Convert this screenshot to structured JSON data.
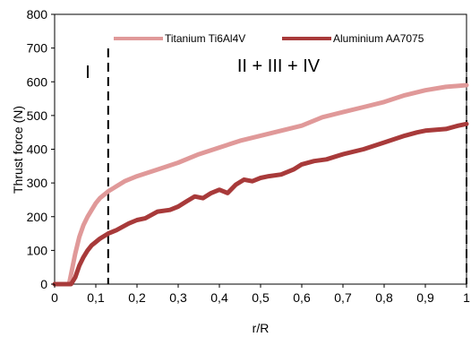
{
  "chart_data": {
    "type": "line",
    "xlabel": "r/R",
    "ylabel": "Thrust force (N)",
    "xlim": [
      0,
      1
    ],
    "ylim": [
      0,
      800
    ],
    "x_ticks": [
      "0",
      "0,1",
      "0,2",
      "0,3",
      "0,4",
      "0,5",
      "0,6",
      "0,7",
      "0,8",
      "0,9",
      "1"
    ],
    "y_ticks": [
      "0",
      "100",
      "200",
      "300",
      "400",
      "500",
      "600",
      "700",
      "800"
    ],
    "grid": false,
    "legend_position": "top",
    "series": [
      {
        "name": "Titanium Ti6Al4V",
        "color": "#e09999",
        "x": [
          0,
          0.035,
          0.04,
          0.05,
          0.06,
          0.07,
          0.08,
          0.09,
          0.1,
          0.11,
          0.12,
          0.13,
          0.15,
          0.17,
          0.2,
          0.25,
          0.3,
          0.35,
          0.4,
          0.45,
          0.5,
          0.55,
          0.6,
          0.65,
          0.7,
          0.75,
          0.8,
          0.85,
          0.9,
          0.95,
          1.0
        ],
        "y": [
          0,
          0,
          30,
          90,
          140,
          175,
          200,
          220,
          240,
          255,
          265,
          275,
          290,
          305,
          320,
          340,
          360,
          385,
          405,
          425,
          440,
          455,
          470,
          495,
          510,
          525,
          540,
          560,
          575,
          585,
          590
        ]
      },
      {
        "name": "Aluminium AA7075",
        "color": "#a83a3a",
        "x": [
          0,
          0.04,
          0.05,
          0.06,
          0.07,
          0.08,
          0.09,
          0.1,
          0.11,
          0.13,
          0.15,
          0.18,
          0.2,
          0.22,
          0.25,
          0.28,
          0.3,
          0.32,
          0.34,
          0.36,
          0.38,
          0.4,
          0.42,
          0.44,
          0.46,
          0.48,
          0.5,
          0.52,
          0.55,
          0.58,
          0.6,
          0.63,
          0.66,
          0.7,
          0.75,
          0.8,
          0.85,
          0.88,
          0.9,
          0.95,
          0.98,
          1.0
        ],
        "y": [
          0,
          0,
          20,
          55,
          80,
          100,
          115,
          125,
          135,
          150,
          160,
          180,
          190,
          195,
          215,
          220,
          230,
          245,
          260,
          255,
          270,
          280,
          270,
          295,
          310,
          305,
          315,
          320,
          325,
          340,
          355,
          365,
          370,
          385,
          400,
          420,
          440,
          450,
          455,
          460,
          470,
          475
        ]
      }
    ],
    "vertical_markers": [
      0.13,
      1.0
    ],
    "annotations": [
      {
        "text": "I",
        "x": 0.065,
        "y": 600
      },
      {
        "text": "II + III + IV",
        "x": 0.52,
        "y": 620
      }
    ]
  }
}
